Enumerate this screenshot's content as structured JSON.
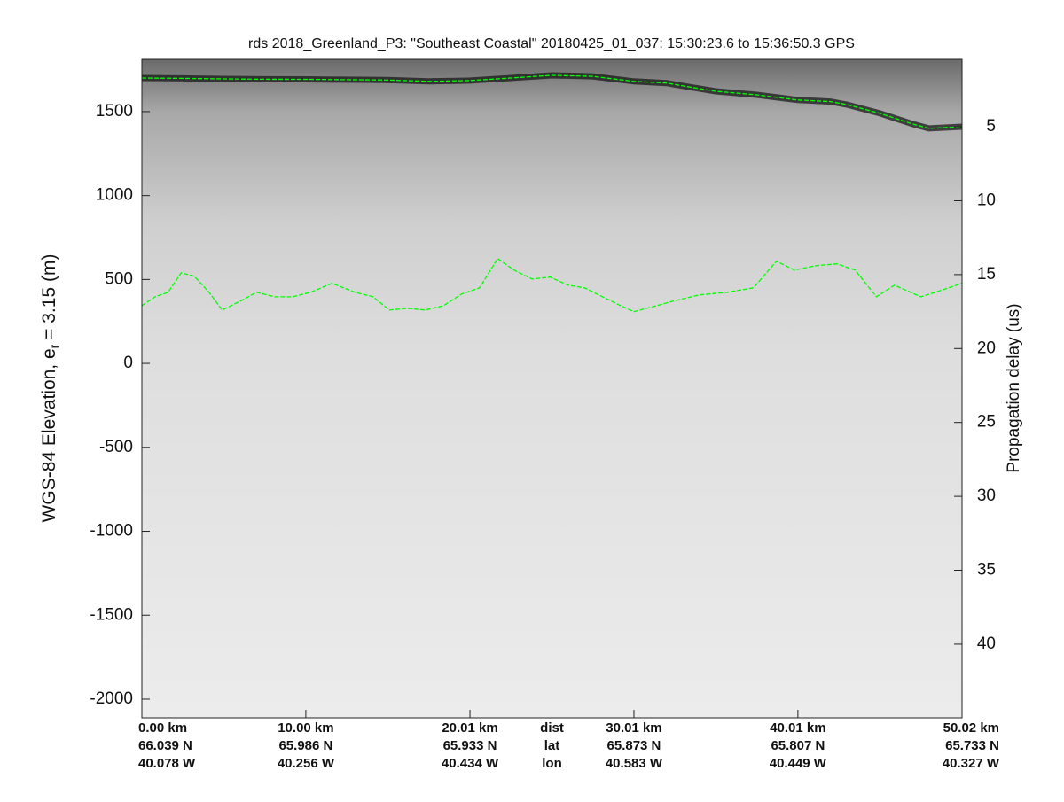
{
  "chart_data": {
    "type": "line",
    "title": "rds 2018_Greenland_P3: \"Southeast Coastal\"  20180425_01_037: 15:30:23.6 to 15:36:50.3 GPS",
    "ylabel_parts": [
      "WGS-84 Elevation, e",
      "r",
      " = 3.15 (m)"
    ],
    "y2label": "Propagation delay (us)",
    "xlim": [
      0,
      50.02
    ],
    "xticks": [
      {
        "value": 0,
        "label": "0.00 km"
      },
      {
        "value": 10.0,
        "label": "10.00 km"
      },
      {
        "value": 20.01,
        "label": "20.01 km"
      },
      {
        "value": 30.01,
        "label": "30.01 km"
      },
      {
        "value": 40.01,
        "label": "40.01 km"
      },
      {
        "value": 50.02,
        "label": "50.02 km"
      }
    ],
    "xtick_lat": [
      "66.039 N",
      "65.986 N",
      "65.933 N",
      "65.873 N",
      "65.807 N",
      "65.733 N"
    ],
    "xtick_lon": [
      "40.078 W",
      "40.256 W",
      "40.434 W",
      "40.583 W",
      "40.449 W",
      "40.327 W"
    ],
    "row_labels": [
      "dist",
      "lat",
      "lon"
    ],
    "ylim": [
      -2111,
      1811
    ],
    "yticks": [
      -2000,
      -1500,
      -1000,
      -500,
      0,
      500,
      1000,
      1500
    ],
    "y2lim": [
      0.44,
      44.98
    ],
    "y2_reversed": true,
    "y2ticks": [
      5,
      10,
      15,
      20,
      25,
      30,
      35,
      40
    ],
    "series": [
      {
        "name": "surface",
        "color": "#00ff00",
        "x": [
          0,
          2.5,
          5,
          7.5,
          10,
          12.5,
          15,
          17.5,
          20,
          22.5,
          25,
          27.5,
          30,
          32,
          33,
          35,
          37.5,
          40,
          42,
          43,
          45,
          47,
          48,
          50.02
        ],
        "values": [
          1700,
          1698,
          1695,
          1693,
          1692,
          1690,
          1688,
          1680,
          1685,
          1700,
          1716,
          1710,
          1680,
          1670,
          1653,
          1621,
          1600,
          1569,
          1560,
          1542,
          1490,
          1426,
          1400,
          1410
        ]
      },
      {
        "name": "bed",
        "color": "#00ff00",
        "x": [
          0,
          0.8,
          1.6,
          2.4,
          3.2,
          4.1,
          4.9,
          6,
          7,
          8.1,
          9.2,
          10.3,
          11.6,
          13,
          14.1,
          15.1,
          16.2,
          17.3,
          18.4,
          19.5,
          20.6,
          21.7,
          22.7,
          23.8,
          24.9,
          26,
          27,
          28.1,
          29.2,
          30,
          31.4,
          32.4,
          34,
          35.7,
          37.3,
          38.7,
          39.8,
          41.1,
          42.4,
          43.5,
          44.8,
          45.9,
          47.5,
          48.7,
          50.02
        ],
        "values": [
          344,
          397,
          424,
          540,
          519,
          424,
          318,
          371,
          424,
          397,
          397,
          424,
          477,
          424,
          397,
          318,
          328,
          318,
          344,
          413,
          450,
          625,
          556,
          503,
          514,
          466,
          450,
          397,
          344,
          308,
          344,
          371,
          408,
          424,
          450,
          609,
          556,
          582,
          593,
          556,
          397,
          466,
          397,
          434,
          477
        ]
      }
    ]
  }
}
